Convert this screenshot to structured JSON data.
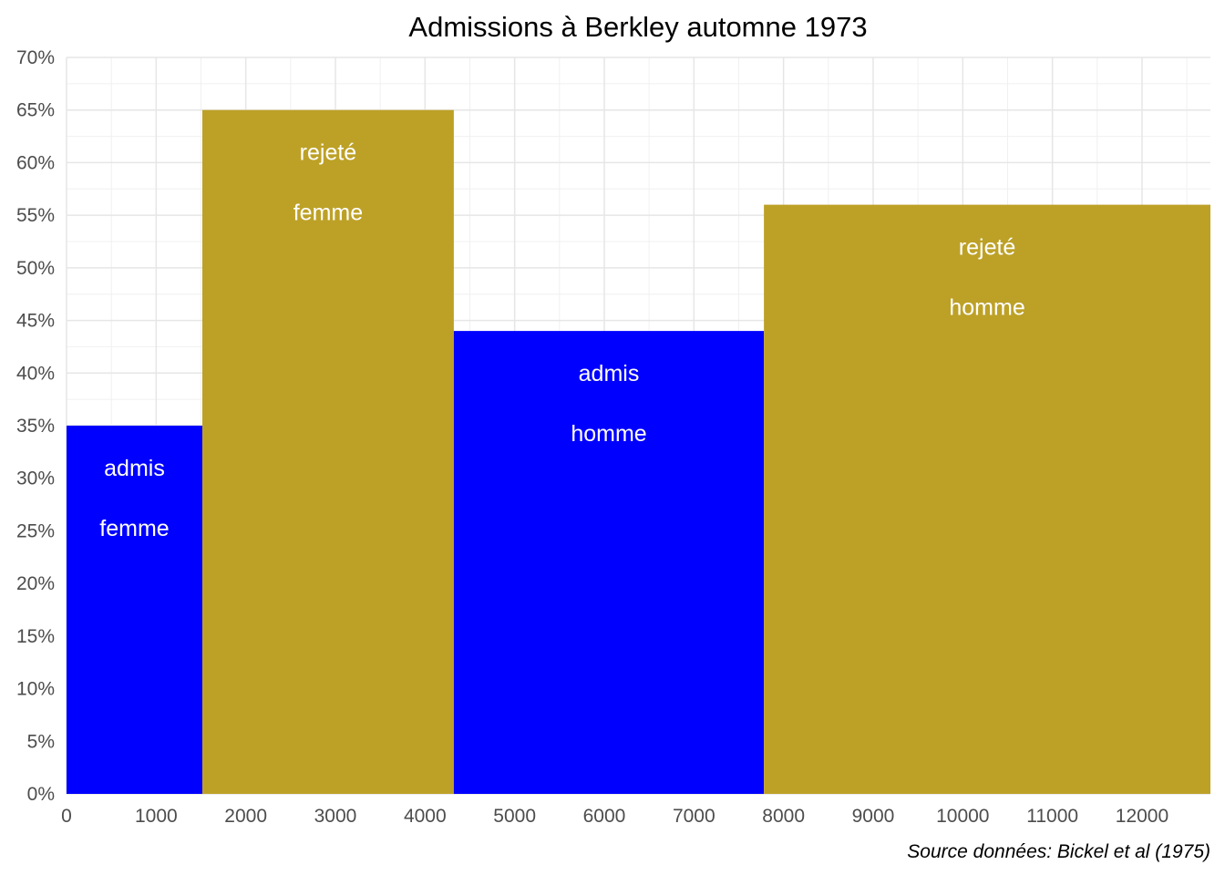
{
  "chart_data": {
    "type": "bar",
    "subtype": "mosaic",
    "title": "Admissions à Berkley automne 1973",
    "caption": "Source données: Bickel et al (1975)",
    "xlabel": "",
    "ylabel": "",
    "xlim": [
      0,
      12763
    ],
    "ylim": [
      0,
      0.7
    ],
    "x_ticks": [
      0,
      1000,
      2000,
      3000,
      4000,
      5000,
      6000,
      7000,
      8000,
      9000,
      10000,
      11000,
      12000
    ],
    "x_tick_labels": [
      "0",
      "1000",
      "2000",
      "3000",
      "4000",
      "5000",
      "6000",
      "7000",
      "8000",
      "9000",
      "10000",
      "11000",
      "12000"
    ],
    "y_ticks": [
      0,
      0.05,
      0.1,
      0.15,
      0.2,
      0.25,
      0.3,
      0.35,
      0.4,
      0.45,
      0.5,
      0.55,
      0.6,
      0.65,
      0.7
    ],
    "y_tick_labels": [
      "0%",
      "5%",
      "10%",
      "15%",
      "20%",
      "25%",
      "30%",
      "35%",
      "40%",
      "45%",
      "50%",
      "55%",
      "60%",
      "65%",
      "70%"
    ],
    "grid": true,
    "colors": {
      "admis": "#0000FF",
      "rejeté": "#BDA127"
    },
    "bars": [
      {
        "status": "admis",
        "gender": "femme",
        "x_start": 0,
        "x_end": 1515,
        "value": 0.35,
        "color": "#0000FF"
      },
      {
        "status": "rejeté",
        "gender": "femme",
        "x_start": 1515,
        "x_end": 4321,
        "value": 0.65,
        "color": "#BDA127"
      },
      {
        "status": "admis",
        "gender": "homme",
        "x_start": 4321,
        "x_end": 7781,
        "value": 0.44,
        "color": "#0000FF"
      },
      {
        "status": "rejeté",
        "gender": "homme",
        "x_start": 7781,
        "x_end": 12763,
        "value": 0.56,
        "color": "#BDA127"
      }
    ]
  }
}
